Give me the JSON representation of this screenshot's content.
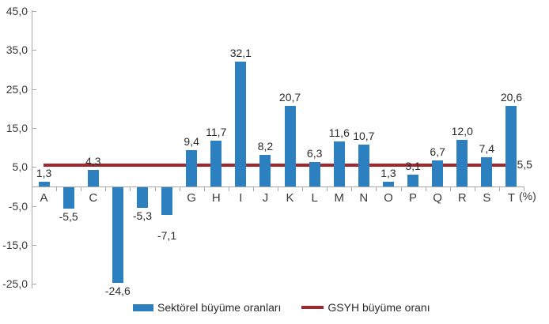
{
  "chart_data": {
    "type": "bar",
    "title": "",
    "categories": [
      "A",
      "B",
      "C",
      "D",
      "E",
      "F",
      "G",
      "H",
      "I",
      "J",
      "K",
      "L",
      "M",
      "N",
      "O",
      "P",
      "Q",
      "R",
      "S",
      "T"
    ],
    "series": [
      {
        "name": "Sektörel büyüme oranları",
        "values": [
          1.3,
          -5.5,
          4.3,
          -24.6,
          -5.3,
          -7.1,
          9.4,
          11.7,
          32.1,
          8.2,
          20.7,
          6.3,
          11.6,
          10.7,
          1.3,
          3.1,
          6.7,
          12.0,
          7.4,
          20.6
        ],
        "value_labels": [
          "1,3",
          "-5,5",
          "4,3",
          "-24,6",
          "-5,3",
          "-7,1",
          "9,4",
          "11,7",
          "32,1",
          "8,2",
          "20,7",
          "6,3",
          "11,6",
          "10,7",
          "1,3",
          "3,1",
          "6,7",
          "12,0",
          "7,4",
          "20,6"
        ],
        "color": "#2c80bf"
      }
    ],
    "reference_line": {
      "name": "GSYH büyüme oranı",
      "value": 5.5,
      "label": "5,5",
      "color": "#a3282d"
    },
    "y_axis": {
      "min": -25,
      "max": 45,
      "tick_step": 10,
      "ticks": [
        45,
        35,
        25,
        15,
        5,
        -5,
        -15,
        -25
      ],
      "tick_labels": [
        "45,0",
        "35,0",
        "25,0",
        "15,0",
        "5,0",
        "-5,0",
        "-15,0",
        "-25,0"
      ]
    },
    "x_axis": {
      "unit_label": "(%)"
    },
    "grid": false,
    "legend_position": "bottom",
    "legend": [
      {
        "swatch": "bar",
        "label": "Sektörel büyüme oranları"
      },
      {
        "swatch": "line",
        "label": "GSYH büyüme oranı"
      }
    ]
  }
}
